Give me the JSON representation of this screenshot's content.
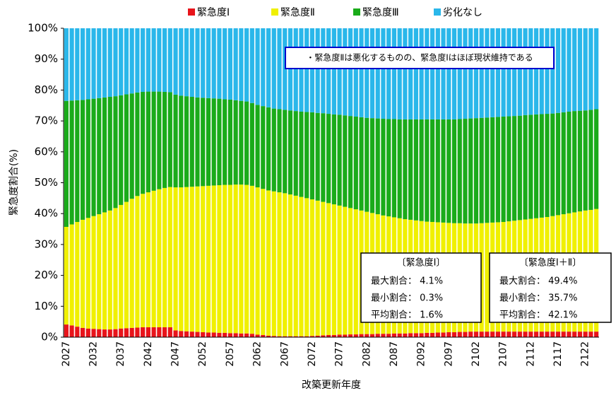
{
  "chart_data": {
    "type": "stacked_bar",
    "x_label": "改築更新年度",
    "y_label": "緊急度割合(%)",
    "categories": [
      "2027",
      null,
      null,
      null,
      null,
      "2032",
      null,
      null,
      null,
      null,
      "2037",
      null,
      null,
      null,
      null,
      "2042",
      null,
      null,
      null,
      null,
      "2047",
      null,
      null,
      null,
      null,
      "2052",
      null,
      null,
      null,
      null,
      "2057",
      null,
      null,
      null,
      null,
      "2062",
      null,
      null,
      null,
      null,
      "2067",
      null,
      null,
      null,
      null,
      "2072",
      null,
      null,
      null,
      null,
      "2077",
      null,
      null,
      null,
      null,
      "2082",
      null,
      null,
      null,
      null,
      "2087",
      null,
      null,
      null,
      null,
      "2092",
      null,
      null,
      null,
      null,
      "2097",
      null,
      null,
      null,
      null,
      "2102",
      null,
      null,
      null,
      null,
      "2107",
      null,
      null,
      null,
      null,
      "2112",
      null,
      null,
      null,
      null,
      "2117",
      null,
      null,
      null,
      null,
      "2122",
      null,
      null
    ],
    "series": [
      {
        "name": "緊急度Ⅰ",
        "color": "#e8141b",
        "values": [
          4.1,
          3.8,
          3.4,
          3.0,
          2.8,
          2.7,
          2.6,
          2.5,
          2.5,
          2.6,
          2.8,
          2.9,
          3.0,
          3.1,
          3.2,
          3.2,
          3.2,
          3.2,
          3.2,
          3.2,
          2.2,
          2.0,
          1.9,
          1.8,
          1.7,
          1.6,
          1.5,
          1.5,
          1.4,
          1.4,
          1.3,
          1.3,
          1.2,
          1.2,
          1.1,
          0.8,
          0.7,
          0.5,
          0.4,
          0.3,
          0.3,
          0.3,
          0.3,
          0.3,
          0.3,
          0.4,
          0.5,
          0.6,
          0.7,
          0.7,
          0.8,
          0.8,
          0.9,
          0.9,
          1.0,
          1.0,
          1.0,
          1.1,
          1.1,
          1.1,
          1.2,
          1.2,
          1.2,
          1.3,
          1.3,
          1.3,
          1.4,
          1.4,
          1.5,
          1.5,
          1.6,
          1.6,
          1.7,
          1.7,
          1.8,
          1.8,
          1.8,
          1.8,
          1.8,
          1.8,
          1.8,
          1.8,
          1.8,
          1.8,
          1.8,
          1.8,
          1.8,
          1.8,
          1.8,
          1.8,
          1.8,
          1.8,
          1.8,
          1.8,
          1.8,
          1.8,
          1.8,
          1.8
        ]
      },
      {
        "name": "緊急度Ⅱ",
        "color": "#f0f000",
        "values": [
          31.6,
          32.7,
          33.9,
          35.0,
          35.8,
          36.5,
          37.2,
          37.9,
          38.5,
          39.2,
          40.0,
          40.9,
          41.8,
          42.6,
          43.2,
          43.7,
          44.2,
          44.7,
          45.1,
          45.4,
          46.3,
          46.5,
          46.7,
          46.9,
          47.1,
          47.3,
          47.5,
          47.6,
          47.8,
          47.9,
          48.0,
          48.1,
          48.2,
          48.1,
          47.9,
          47.7,
          47.3,
          47.0,
          46.8,
          46.6,
          46.3,
          45.9,
          45.5,
          45.1,
          44.7,
          44.2,
          43.7,
          43.2,
          42.7,
          42.3,
          41.8,
          41.4,
          40.9,
          40.5,
          40.0,
          39.6,
          39.2,
          38.7,
          38.3,
          38.0,
          37.6,
          37.3,
          37.0,
          36.7,
          36.5,
          36.3,
          36.0,
          35.9,
          35.7,
          35.6,
          35.4,
          35.3,
          35.2,
          35.1,
          35.0,
          35.0,
          35.1,
          35.2,
          35.3,
          35.4,
          35.5,
          35.7,
          35.9,
          36.1,
          36.3,
          36.5,
          36.7,
          36.9,
          37.1,
          37.4,
          37.7,
          38.0,
          38.3,
          38.6,
          38.9,
          39.2,
          39.4,
          39.7
        ]
      },
      {
        "name": "緊急度Ⅲ",
        "color": "#1aab1a",
        "values": [
          40.8,
          40.1,
          39.4,
          38.8,
          38.4,
          38.0,
          37.6,
          37.2,
          36.8,
          36.2,
          35.5,
          34.8,
          34.1,
          33.5,
          33.0,
          32.6,
          32.1,
          31.6,
          31.1,
          30.7,
          30.0,
          29.7,
          29.4,
          29.1,
          28.8,
          28.6,
          28.4,
          28.2,
          28.0,
          27.7,
          27.6,
          27.3,
          27.1,
          27.0,
          26.8,
          26.7,
          26.8,
          26.9,
          26.8,
          26.9,
          27.0,
          27.2,
          27.4,
          27.6,
          27.9,
          28.2,
          28.4,
          28.7,
          28.9,
          29.1,
          29.4,
          29.6,
          29.8,
          30.0,
          30.2,
          30.4,
          30.7,
          31.0,
          31.3,
          31.5,
          31.8,
          32.0,
          32.3,
          32.5,
          32.7,
          32.9,
          33.1,
          33.2,
          33.3,
          33.4,
          33.5,
          33.6,
          33.7,
          33.9,
          34.0,
          34.1,
          34.1,
          34.1,
          34.1,
          34.1,
          34.1,
          34.0,
          33.9,
          33.8,
          33.8,
          33.7,
          33.6,
          33.5,
          33.4,
          33.2,
          33.1,
          33.0,
          32.9,
          32.8,
          32.6,
          32.4,
          32.4,
          32.3
        ]
      },
      {
        "name": "劣化なし",
        "color": "#2ab7ea",
        "values": [
          23.5,
          23.4,
          23.3,
          23.2,
          23.0,
          22.8,
          22.6,
          22.4,
          22.2,
          22.0,
          21.7,
          21.4,
          21.1,
          20.8,
          20.6,
          20.5,
          20.5,
          20.5,
          20.6,
          20.7,
          21.5,
          21.8,
          22.0,
          22.2,
          22.4,
          22.5,
          22.6,
          22.7,
          22.8,
          23.0,
          23.1,
          23.3,
          23.5,
          23.7,
          24.2,
          24.8,
          25.2,
          25.6,
          26.0,
          26.2,
          26.4,
          26.6,
          26.8,
          27.0,
          27.1,
          27.2,
          27.4,
          27.5,
          27.7,
          27.9,
          28.0,
          28.2,
          28.4,
          28.6,
          28.8,
          29.0,
          29.1,
          29.2,
          29.3,
          29.4,
          29.4,
          29.5,
          29.5,
          29.5,
          29.5,
          29.5,
          29.5,
          29.5,
          29.5,
          29.5,
          29.5,
          29.5,
          29.4,
          29.3,
          29.2,
          29.1,
          29.0,
          28.9,
          28.8,
          28.7,
          28.6,
          28.5,
          28.4,
          28.3,
          28.1,
          28.0,
          27.9,
          27.8,
          27.7,
          27.6,
          27.4,
          27.2,
          27.0,
          26.8,
          26.7,
          26.6,
          26.4,
          26.2
        ]
      }
    ],
    "ylim": [
      0,
      100
    ],
    "yticks": [
      {
        "value": 0,
        "label": "0%"
      },
      {
        "value": 10,
        "label": "10%"
      },
      {
        "value": 20,
        "label": "20%"
      },
      {
        "value": 30,
        "label": "30%"
      },
      {
        "value": 40,
        "label": "40%"
      },
      {
        "value": 50,
        "label": "50%"
      },
      {
        "value": 60,
        "label": "60%"
      },
      {
        "value": 70,
        "label": "70%"
      },
      {
        "value": 80,
        "label": "80%"
      },
      {
        "value": 90,
        "label": "90%"
      },
      {
        "value": 100,
        "label": "100%"
      }
    ],
    "grid": false,
    "legend": "top",
    "annotation": "・緊急度Ⅱは悪化するものの、緊急度Ⅰはほぼ現状維持である",
    "stat_boxes": [
      {
        "title": "〔緊急度Ⅰ〕",
        "rows": [
          "最大割合： 4.1%",
          "最小割合： 0.3%",
          "平均割合： 1.6%"
        ]
      },
      {
        "title": "〔緊急度Ⅰ＋Ⅱ〕",
        "rows": [
          "最大割合： 49.4%",
          "最小割合： 35.7%",
          "平均割合： 42.1%"
        ]
      }
    ]
  }
}
